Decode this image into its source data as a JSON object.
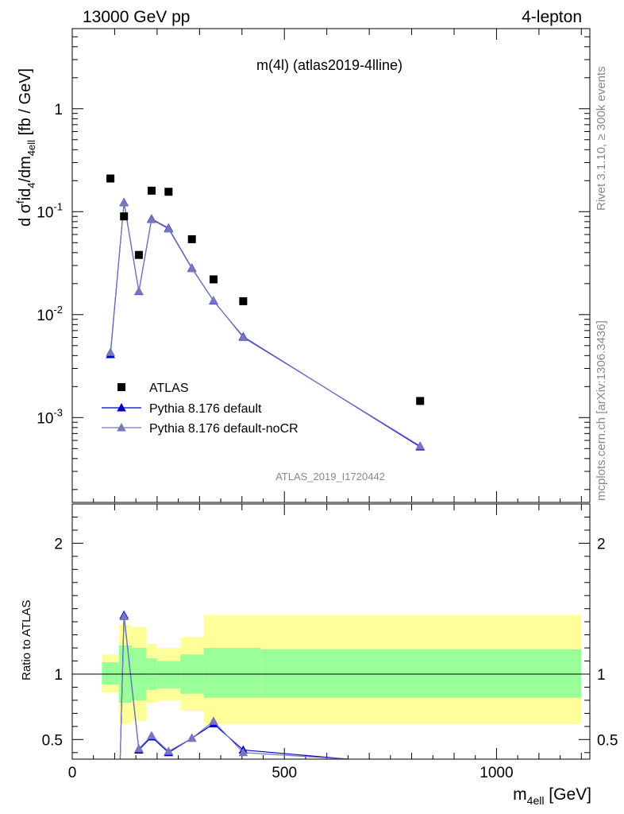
{
  "header": {
    "left": "13000 GeV pp",
    "right": "4-lepton"
  },
  "side": {
    "rivet": "Rivet 3.1.10, ≥ 300k events",
    "mcplots": "mcplots.cern.ch [arXiv:1306.3436]"
  },
  "chart_data": [
    {
      "type": "scatter",
      "title": "m(4l) (atlas2019-4lline)",
      "analysis_id": "ATLAS_2019_I1720442",
      "ylabel": "d σ^{fid}_{4} / dm_{4ell} [fb / GeV]",
      "yscale": "log",
      "ylim": [
        0.00015,
        6
      ],
      "xlim": [
        0,
        1220
      ],
      "y_tick_labels": [
        "10^-3",
        "10^-2",
        "10^-1",
        "1"
      ],
      "legend_position": "lower-left",
      "colors": {
        "data": "#000000",
        "default": "#0000cc",
        "noCR": "#7777bb"
      },
      "x": [
        90,
        122,
        157,
        187,
        227,
        282,
        333,
        403,
        820
      ],
      "series": [
        {
          "name": "ATLAS",
          "style": "square-marker",
          "values": [
            0.21,
            0.09,
            0.038,
            0.16,
            0.156,
            0.054,
            0.022,
            0.0135,
            0.00145
          ]
        },
        {
          "name": "Pythia 8.176 default",
          "style": "line-triangle",
          "values": [
            0.0041,
            0.123,
            0.0168,
            0.085,
            0.069,
            0.0283,
            0.0136,
            0.0061,
            0.00052
          ]
        },
        {
          "name": "Pythia 8.176 default-noCR",
          "style": "line-triangle",
          "values": [
            0.0043,
            0.122,
            0.0169,
            0.084,
            0.068,
            0.028,
            0.0137,
            0.006,
            0.00053
          ]
        }
      ]
    },
    {
      "type": "line",
      "ylabel": "Ratio to ATLAS",
      "xlabel": "m_{4ell} [GeV]",
      "xlim": [
        0,
        1220
      ],
      "ylim": [
        0.35,
        2.3
      ],
      "x_ticks": [
        0,
        500,
        1000
      ],
      "y_ticks": [
        0.5,
        1,
        2
      ],
      "reference_line": 1,
      "band_colors": {
        "inner": "#99ff99",
        "outer": "#ffff99"
      },
      "bands": [
        {
          "x0": 70,
          "x1": 110,
          "inner": [
            0.92,
            1.09
          ],
          "outer": [
            0.86,
            1.15
          ]
        },
        {
          "x0": 110,
          "x1": 140,
          "inner": [
            0.78,
            1.22
          ],
          "outer": [
            0.62,
            1.38
          ]
        },
        {
          "x0": 140,
          "x1": 175,
          "inner": [
            0.8,
            1.2
          ],
          "outer": [
            0.64,
            1.36
          ]
        },
        {
          "x0": 175,
          "x1": 200,
          "inner": [
            0.88,
            1.12
          ],
          "outer": [
            0.78,
            1.23
          ]
        },
        {
          "x0": 200,
          "x1": 255,
          "inner": [
            0.89,
            1.1
          ],
          "outer": [
            0.8,
            1.2
          ]
        },
        {
          "x0": 255,
          "x1": 310,
          "inner": [
            0.85,
            1.15
          ],
          "outer": [
            0.72,
            1.28
          ]
        },
        {
          "x0": 310,
          "x1": 445,
          "inner": [
            0.82,
            1.2
          ],
          "outer": [
            0.62,
            1.45
          ]
        },
        {
          "x0": 445,
          "x1": 1200,
          "inner": [
            0.82,
            1.19
          ],
          "outer": [
            0.62,
            1.45
          ]
        }
      ],
      "x": [
        113,
        122,
        157,
        187,
        227,
        282,
        333,
        403,
        650
      ],
      "series": [
        {
          "name": "Pythia 8.176 default",
          "values": [
            0.35,
            1.45,
            0.42,
            0.52,
            0.4,
            0.51,
            0.62,
            0.42,
            0.35
          ]
        },
        {
          "name": "Pythia 8.176 default-noCR",
          "values": [
            0.35,
            1.44,
            0.43,
            0.53,
            0.41,
            0.51,
            0.64,
            0.4,
            0.35
          ]
        }
      ]
    }
  ]
}
